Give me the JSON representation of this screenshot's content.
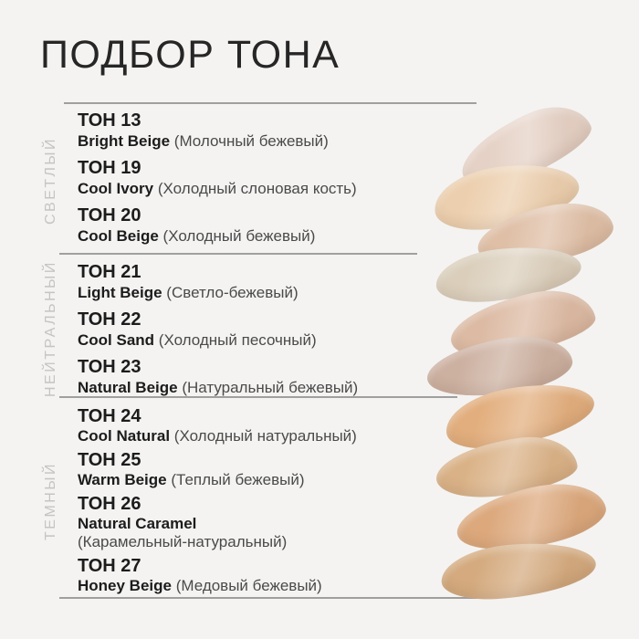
{
  "page": {
    "title": "ПОДБОР ТОНА",
    "colors": {
      "background": "#f4f3f1",
      "primary_text": "#1c1c1c",
      "secondary_text": "#4a4a4a",
      "divider": "#8f8f8f",
      "group_label": "#c6c4c2"
    }
  },
  "groups": [
    {
      "label": "СВЕТЛЫЙ",
      "tones": [
        {
          "id": "ТОН 13",
          "name_en": "Bright Beige",
          "name_ru": "(Молочный бежевый)",
          "color": "#e5d1c5"
        },
        {
          "id": "ТОН 19",
          "name_en": "Cool Ivory",
          "name_ru": "(Холодный слоновая кость)",
          "color": "#eccfae"
        },
        {
          "id": "ТОН 20",
          "name_en": "Cool Beige",
          "name_ru": "(Холодный бежевый)",
          "color": "#dfbfa6"
        }
      ]
    },
    {
      "label": "НЕЙТРАЛЬНЫЙ",
      "tones": [
        {
          "id": "ТОН 21",
          "name_en": "Light Beige",
          "name_ru": "(Светло-бежевый)",
          "color": "#dbcfbc"
        },
        {
          "id": "ТОН 22",
          "name_en": "Cool Sand",
          "name_ru": "(Холодный песочный)",
          "color": "#dcbaa3"
        },
        {
          "id": "ТОН 23",
          "name_en": "Natural Beige",
          "name_ru": "(Натуральный бежевый)",
          "color": "#ccb0a0"
        }
      ]
    },
    {
      "label": "ТЕМНЫЙ",
      "tones": [
        {
          "id": "ТОН 24",
          "name_en": "Cool Natural",
          "name_ru": "(Холодный натуральный)",
          "color": "#e2ae7d"
        },
        {
          "id": "ТОН 25",
          "name_en": "Warm Beige",
          "name_ru": "(Теплый бежевый)",
          "color": "#dab287"
        },
        {
          "id": "ТОН 26",
          "name_en": "Natural Caramel",
          "name_ru": "(Карамельный-натуральный)",
          "color": "#dca87c"
        },
        {
          "id": "ТОН 27",
          "name_en": "Honey Beige",
          "name_ru": "(Медовый бежевый)",
          "color": "#d4aa7e"
        }
      ]
    }
  ]
}
